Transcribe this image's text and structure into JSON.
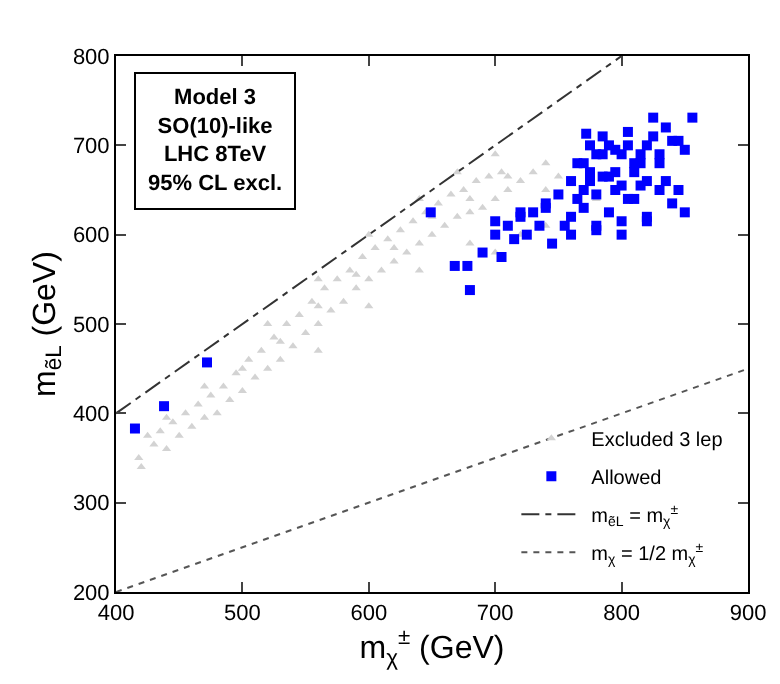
{
  "chart_data": {
    "type": "scatter",
    "xlabel": "m$_{χ}$$^{±}$ (GeV)",
    "ylabel": "m$_{ẽL}$ (GeV)",
    "annotations": [
      "Model 3",
      "SO(10)-like",
      "LHC 8TeV",
      "95% CL excl."
    ],
    "xlim": [
      400,
      900
    ],
    "xticks": [
      400,
      500,
      600,
      700,
      800,
      900
    ],
    "ylim": [
      200,
      800
    ],
    "yticks": [
      200,
      300,
      400,
      500,
      600,
      700,
      800
    ],
    "grid": false,
    "legend": "bottom right",
    "series": [
      {
        "name": "Excluded 3 lep",
        "type": "scatter",
        "marker": "triangle",
        "color": "#d3d3d3",
        "x": [
          418,
          420,
          425,
          430,
          435,
          440,
          445,
          450,
          455,
          460,
          465,
          470,
          475,
          480,
          485,
          490,
          495,
          500,
          505,
          510,
          515,
          520,
          525,
          530,
          535,
          540,
          545,
          550,
          555,
          560,
          565,
          570,
          575,
          580,
          585,
          590,
          595,
          600,
          605,
          610,
          615,
          620,
          625,
          630,
          635,
          640,
          645,
          650,
          655,
          660,
          665,
          670,
          675,
          680,
          685,
          690,
          695,
          700,
          705,
          710,
          720,
          730,
          740,
          750,
          780,
          560,
          600,
          640,
          680,
          700,
          720,
          740,
          520,
          560,
          600,
          640,
          670,
          700,
          440,
          470,
          500,
          530,
          560,
          590,
          620,
          650,
          680,
          710,
          740
        ],
        "values": [
          350,
          340,
          375,
          365,
          380,
          360,
          390,
          375,
          400,
          385,
          410,
          395,
          420,
          400,
          430,
          415,
          445,
          425,
          460,
          440,
          470,
          450,
          485,
          460,
          500,
          475,
          510,
          490,
          525,
          500,
          540,
          515,
          550,
          525,
          560,
          540,
          575,
          550,
          585,
          560,
          595,
          570,
          605,
          580,
          615,
          590,
          625,
          600,
          635,
          610,
          645,
          620,
          650,
          625,
          660,
          630,
          665,
          640,
          670,
          650,
          660,
          670,
          680,
          665,
          640,
          470,
          520,
          560,
          590,
          580,
          600,
          610,
          500,
          550,
          600,
          640,
          670,
          690,
          395,
          430,
          450,
          480,
          520,
          555,
          585,
          620,
          640,
          665,
          650
        ]
      },
      {
        "name": "Allowed",
        "type": "scatter",
        "marker": "square",
        "color": "#0000ff",
        "x": [
          415,
          438,
          472,
          649,
          668,
          678,
          680,
          690,
          700,
          705,
          710,
          715,
          720,
          725,
          730,
          735,
          740,
          745,
          750,
          755,
          760,
          765,
          770,
          772,
          775,
          780,
          785,
          790,
          795,
          800,
          805,
          810,
          815,
          820,
          825,
          830,
          835,
          840,
          845,
          850,
          856,
          760,
          770,
          780,
          790,
          800,
          810,
          820,
          830,
          840,
          850,
          765,
          775,
          785,
          795,
          805,
          815,
          825,
          835,
          845,
          770,
          780,
          790,
          800,
          810,
          820,
          830,
          775,
          785,
          795,
          805,
          815,
          700,
          720,
          740,
          760,
          780,
          800,
          820
        ],
        "values": [
          383,
          408,
          457,
          625,
          565,
          565,
          538,
          580,
          600,
          575,
          610,
          595,
          620,
          600,
          625,
          610,
          635,
          590,
          645,
          610,
          660,
          640,
          680,
          713,
          670,
          690,
          665,
          700,
          650,
          690,
          640,
          680,
          655,
          700,
          731,
          690,
          660,
          705,
          650,
          695,
          731,
          620,
          630,
          610,
          625,
          600,
          640,
          615,
          650,
          635,
          625,
          680,
          660,
          690,
          670,
          700,
          680,
          710,
          720,
          705,
          650,
          645,
          665,
          655,
          670,
          660,
          680,
          700,
          710,
          695,
          715,
          690,
          615,
          625,
          630,
          600,
          605,
          615,
          620
        ]
      },
      {
        "name": "m$_{ẽL}$ = m$_{χ}$$^{±}$",
        "type": "line",
        "marker": "none",
        "line_style": "dashed",
        "color": "#333333",
        "x": [
          400,
          800
        ],
        "values": [
          400,
          800
        ]
      },
      {
        "name": "m$_{χ}$ = 1/2 m$_{χ}$$^{±}$",
        "type": "line",
        "marker": "none",
        "line_style": "dotted",
        "color": "#555555",
        "x": [
          400,
          900
        ],
        "values": [
          200,
          450
        ]
      }
    ]
  }
}
